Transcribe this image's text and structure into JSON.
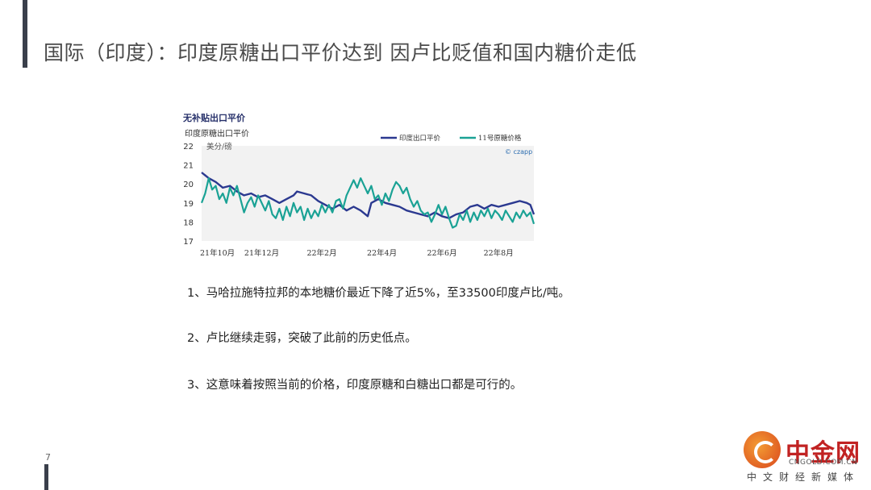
{
  "page": {
    "title": "国际（印度）：印度原糖出口平价达到 因卢比贬值和国内糖价走低",
    "page_number": "7"
  },
  "bullets": [
    "1、马哈拉施特拉邦的本地糖价最近下降了近5%，至33500印度卢比/吨。",
    "2、卢比继续走弱，突破了此前的历史低点。",
    "3、这意味着按照当前的价格，印度原糖和白糖出口都是可行的。"
  ],
  "logo": {
    "main_text": "中金网",
    "english_text": "CNGOLD.COM.CN",
    "tagline": "中文财经新媒体"
  },
  "chart_data": {
    "type": "line",
    "heading": "无补贴出口平价",
    "title": "印度原糖出口平价",
    "ylabel": "美分/磅",
    "source": "© czapp",
    "ylim": [
      17,
      22
    ],
    "yticks": [
      "22",
      "21",
      "20",
      "19",
      "18",
      "17"
    ],
    "xtick_labels": [
      "21年10月",
      "21年12月",
      "22年2月",
      "22年4月",
      "22年6月",
      "22年8月"
    ],
    "grid": false,
    "legend_position": "top-right",
    "x_unit": "weeks since 21年10月 (approx.)",
    "series": [
      {
        "name": "印度出口平价",
        "color": "#2b3990",
        "points": [
          [
            0,
            20.6
          ],
          [
            2,
            20.3
          ],
          [
            4,
            20.1
          ],
          [
            6,
            19.8
          ],
          [
            8,
            19.9
          ],
          [
            10,
            19.6
          ],
          [
            12,
            19.4
          ],
          [
            14,
            19.5
          ],
          [
            16,
            19.3
          ],
          [
            18,
            19.4
          ],
          [
            20,
            19.2
          ],
          [
            22,
            19.0
          ],
          [
            24,
            19.2
          ],
          [
            26,
            19.4
          ],
          [
            27,
            19.6
          ],
          [
            29,
            19.5
          ],
          [
            31,
            19.4
          ],
          [
            33,
            19.1
          ],
          [
            35,
            18.9
          ],
          [
            37,
            18.7
          ],
          [
            39,
            18.9
          ],
          [
            41,
            18.6
          ],
          [
            43,
            18.8
          ],
          [
            45,
            18.6
          ],
          [
            47,
            18.3
          ],
          [
            48,
            19.0
          ],
          [
            50,
            19.2
          ],
          [
            52,
            19.0
          ],
          [
            54,
            18.9
          ],
          [
            56,
            18.8
          ],
          [
            58,
            18.6
          ],
          [
            60,
            18.5
          ],
          [
            62,
            18.4
          ],
          [
            64,
            18.3
          ],
          [
            66,
            18.5
          ],
          [
            68,
            18.3
          ],
          [
            70,
            18.2
          ],
          [
            72,
            18.4
          ],
          [
            74,
            18.5
          ],
          [
            76,
            18.8
          ],
          [
            78,
            18.9
          ],
          [
            80,
            18.7
          ],
          [
            82,
            18.9
          ],
          [
            84,
            18.8
          ],
          [
            86,
            18.9
          ],
          [
            88,
            19.0
          ],
          [
            90,
            19.1
          ],
          [
            92,
            19.0
          ],
          [
            93,
            18.9
          ],
          [
            94,
            18.4
          ]
        ]
      },
      {
        "name": "11号原糖价格",
        "color": "#1aa295",
        "points": [
          [
            0,
            19.0
          ],
          [
            1,
            19.5
          ],
          [
            2,
            20.3
          ],
          [
            3,
            19.7
          ],
          [
            4,
            19.9
          ],
          [
            5,
            19.2
          ],
          [
            6,
            19.5
          ],
          [
            7,
            19.0
          ],
          [
            8,
            19.8
          ],
          [
            9,
            19.4
          ],
          [
            10,
            19.9
          ],
          [
            11,
            19.2
          ],
          [
            12,
            18.5
          ],
          [
            13,
            19.0
          ],
          [
            14,
            19.3
          ],
          [
            15,
            18.8
          ],
          [
            16,
            19.4
          ],
          [
            17,
            19.0
          ],
          [
            18,
            18.6
          ],
          [
            19,
            19.1
          ],
          [
            20,
            18.4
          ],
          [
            21,
            18.2
          ],
          [
            22,
            18.7
          ],
          [
            23,
            18.1
          ],
          [
            24,
            18.8
          ],
          [
            25,
            18.3
          ],
          [
            26,
            19.0
          ],
          [
            27,
            18.5
          ],
          [
            28,
            18.8
          ],
          [
            29,
            18.1
          ],
          [
            30,
            18.7
          ],
          [
            31,
            18.2
          ],
          [
            32,
            18.6
          ],
          [
            33,
            18.3
          ],
          [
            34,
            18.9
          ],
          [
            35,
            18.5
          ],
          [
            36,
            18.9
          ],
          [
            37,
            18.5
          ],
          [
            38,
            19.1
          ],
          [
            39,
            19.2
          ],
          [
            40,
            18.7
          ],
          [
            41,
            19.4
          ],
          [
            42,
            19.8
          ],
          [
            43,
            20.2
          ],
          [
            44,
            19.8
          ],
          [
            45,
            20.3
          ],
          [
            46,
            19.9
          ],
          [
            47,
            19.5
          ],
          [
            48,
            19.9
          ],
          [
            49,
            19.2
          ],
          [
            50,
            19.4
          ],
          [
            51,
            18.9
          ],
          [
            52,
            19.5
          ],
          [
            53,
            19.1
          ],
          [
            54,
            19.7
          ],
          [
            55,
            20.1
          ],
          [
            56,
            19.9
          ],
          [
            57,
            19.5
          ],
          [
            58,
            19.8
          ],
          [
            59,
            19.2
          ],
          [
            60,
            18.8
          ],
          [
            61,
            19.1
          ],
          [
            62,
            18.6
          ],
          [
            63,
            18.4
          ],
          [
            64,
            18.5
          ],
          [
            65,
            18.0
          ],
          [
            66,
            18.4
          ],
          [
            67,
            18.9
          ],
          [
            68,
            18.4
          ],
          [
            69,
            18.8
          ],
          [
            70,
            18.2
          ],
          [
            71,
            17.7
          ],
          [
            72,
            17.8
          ],
          [
            73,
            18.4
          ],
          [
            74,
            18.1
          ],
          [
            75,
            18.6
          ],
          [
            76,
            18.0
          ],
          [
            77,
            18.5
          ],
          [
            78,
            18.1
          ],
          [
            79,
            18.6
          ],
          [
            80,
            18.3
          ],
          [
            81,
            18.7
          ],
          [
            82,
            18.2
          ],
          [
            83,
            18.6
          ],
          [
            84,
            18.4
          ],
          [
            85,
            18.1
          ],
          [
            86,
            18.6
          ],
          [
            87,
            18.3
          ],
          [
            88,
            18.0
          ],
          [
            89,
            18.5
          ],
          [
            90,
            18.2
          ],
          [
            91,
            18.6
          ],
          [
            92,
            18.3
          ],
          [
            93,
            18.5
          ],
          [
            94,
            17.9
          ]
        ]
      }
    ]
  }
}
